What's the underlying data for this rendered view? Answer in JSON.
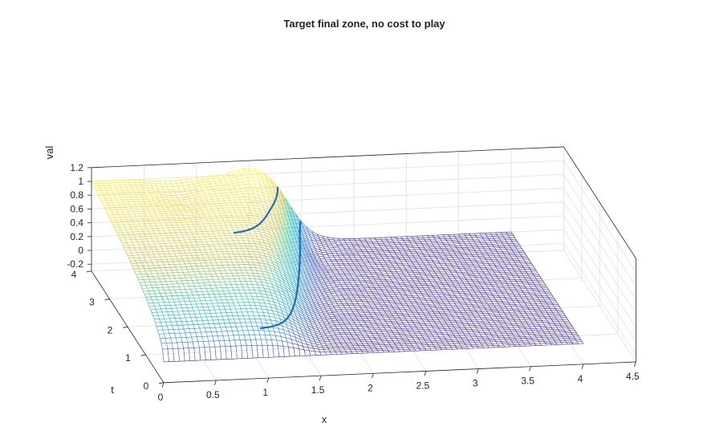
{
  "chart_data": {
    "type": "surface-mesh",
    "title": "Target final zone, no cost to play",
    "xlabel": "x",
    "ylabel": "t",
    "zlabel": "val",
    "xlim": [
      0,
      4.5
    ],
    "ylim": [
      0,
      4
    ],
    "zlim": [
      -0.3,
      1.2
    ],
    "x_ticks": [
      "0",
      "0.5",
      "1",
      "1.5",
      "2",
      "2.5",
      "3",
      "3.5",
      "4",
      "4.5"
    ],
    "y_ticks": [
      "0",
      "1",
      "2",
      "3",
      "4"
    ],
    "z_ticks": [
      "-0.2",
      "0",
      "0.2",
      "0.4",
      "0.6",
      "0.8",
      "1",
      "1.2"
    ],
    "colormap": [
      "#3e26a8",
      "#2f6ce0",
      "#1aa8d6",
      "#2fc59a",
      "#b7bd3c",
      "#f9d52f",
      "#f9fb15"
    ],
    "grid": true,
    "surface": {
      "x_range": [
        0,
        4
      ],
      "t_range": [
        0,
        4
      ],
      "description_values": {
        "value_at_x0_t4": 1.0,
        "value_at_x0_t0": 0.0,
        "value_right_of_x1_8": 0.0,
        "peak_near_x1_5_t4": 1.05
      }
    },
    "contour_lines": {
      "color": "#1f6fb2",
      "levels": [
        0.0,
        0.3,
        0.8
      ]
    }
  }
}
